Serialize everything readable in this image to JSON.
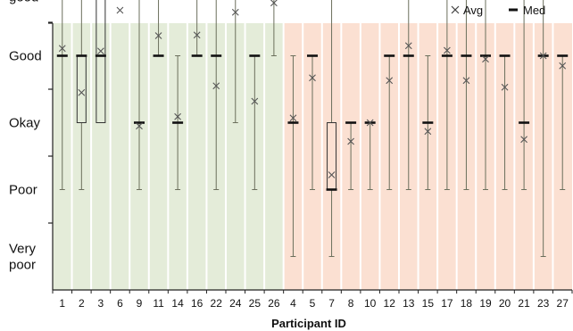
{
  "chart_data": {
    "type": "box",
    "xlabel": "Participant ID",
    "y_categories": [
      "Very poor",
      "Poor",
      "Okay",
      "Good",
      "Very good"
    ],
    "ylim": [
      1,
      5
    ],
    "legend": {
      "position": "top-right",
      "items": [
        {
          "symbol": "×",
          "label": "Avg"
        },
        {
          "symbol": "▬",
          "label": "Med"
        }
      ]
    },
    "groups": [
      {
        "name": "",
        "color": "#e4ecd9",
        "participants": [
          "1",
          "2",
          "3",
          "6",
          "9",
          "11",
          "14",
          "16",
          "22",
          "24",
          "25",
          "26"
        ]
      },
      {
        "name": "",
        "color": "#fbe0d2",
        "participants": [
          "4",
          "5",
          "7",
          "8",
          "10",
          "12",
          "13",
          "15",
          "17",
          "18",
          "19",
          "20",
          "21",
          "23",
          "27"
        ]
      }
    ],
    "participants": [
      {
        "id": "1",
        "min": 2,
        "q1": 4,
        "median": 4,
        "q3": 4,
        "max": 5,
        "avg": 4.11
      },
      {
        "id": "2",
        "min": 2,
        "q1": 3,
        "median": 4,
        "q3": 4,
        "max": 5,
        "avg": 3.45
      },
      {
        "id": "3",
        "min": 3,
        "q1": 3,
        "median": 4,
        "q3": 5,
        "max": 5,
        "avg": 4.07
      },
      {
        "id": "6",
        "min": 5,
        "q1": 5,
        "median": 5,
        "q3": 5,
        "max": 5,
        "avg": 4.68
      },
      {
        "id": "9",
        "min": 2,
        "q1": 3,
        "median": 3,
        "q3": 3,
        "max": 5,
        "avg": 2.95
      },
      {
        "id": "11",
        "min": 4,
        "q1": 4,
        "median": 4,
        "q3": 4,
        "max": 5,
        "avg": 4.3
      },
      {
        "id": "14",
        "min": 2,
        "q1": 3,
        "median": 3,
        "q3": 3,
        "max": 4,
        "avg": 3.09
      },
      {
        "id": "16",
        "min": 4,
        "q1": 4,
        "median": 4,
        "q3": 4,
        "max": 5,
        "avg": 4.31
      },
      {
        "id": "22",
        "min": 2,
        "q1": 4,
        "median": 4,
        "q3": 4,
        "max": 5,
        "avg": 3.55
      },
      {
        "id": "24",
        "min": 3,
        "q1": 5,
        "median": 5,
        "q3": 5,
        "max": 5,
        "avg": 4.65
      },
      {
        "id": "25",
        "min": 2,
        "q1": 4,
        "median": 4,
        "q3": 4,
        "max": 4,
        "avg": 3.32
      },
      {
        "id": "26",
        "min": 4,
        "q1": 5,
        "median": 5,
        "q3": 5,
        "max": 5,
        "avg": 4.79
      },
      {
        "id": "4",
        "min": 1,
        "q1": 3,
        "median": 3,
        "q3": 3,
        "max": 4,
        "avg": 3.07
      },
      {
        "id": "5",
        "min": 2,
        "q1": 4,
        "median": 4,
        "q3": 4,
        "max": 4,
        "avg": 3.67
      },
      {
        "id": "7",
        "min": 1,
        "q1": 2,
        "median": 2,
        "q3": 3,
        "max": 5,
        "avg": 2.22
      },
      {
        "id": "8",
        "min": 2,
        "q1": 3,
        "median": 3,
        "q3": 3,
        "max": 3,
        "avg": 2.72
      },
      {
        "id": "10",
        "min": 2,
        "q1": 3,
        "median": 3,
        "q3": 3,
        "max": 3,
        "avg": 3.0
      },
      {
        "id": "12",
        "min": 2,
        "q1": 4,
        "median": 4,
        "q3": 4,
        "max": 4,
        "avg": 3.63
      },
      {
        "id": "13",
        "min": 2,
        "q1": 4,
        "median": 4,
        "q3": 4,
        "max": 5,
        "avg": 4.15
      },
      {
        "id": "15",
        "min": 2,
        "q1": 3,
        "median": 3,
        "q3": 3,
        "max": 4,
        "avg": 2.87
      },
      {
        "id": "17",
        "min": 2,
        "q1": 4,
        "median": 4,
        "q3": 4,
        "max": 5,
        "avg": 4.08
      },
      {
        "id": "18",
        "min": 2,
        "q1": 4,
        "median": 4,
        "q3": 4,
        "max": 5,
        "avg": 3.63
      },
      {
        "id": "19",
        "min": 2,
        "q1": 4,
        "median": 4,
        "q3": 4,
        "max": 5,
        "avg": 3.95
      },
      {
        "id": "20",
        "min": 2,
        "q1": 4,
        "median": 4,
        "q3": 4,
        "max": 4,
        "avg": 3.53
      },
      {
        "id": "21",
        "min": 2,
        "q1": 3,
        "median": 3,
        "q3": 3,
        "max": 5,
        "avg": 2.75
      },
      {
        "id": "23",
        "min": 1,
        "q1": 4,
        "median": 4,
        "q3": 4,
        "max": 5,
        "avg": 4.0
      },
      {
        "id": "27",
        "min": 2,
        "q1": 4,
        "median": 4,
        "q3": 4,
        "max": 4,
        "avg": 3.85
      }
    ]
  }
}
